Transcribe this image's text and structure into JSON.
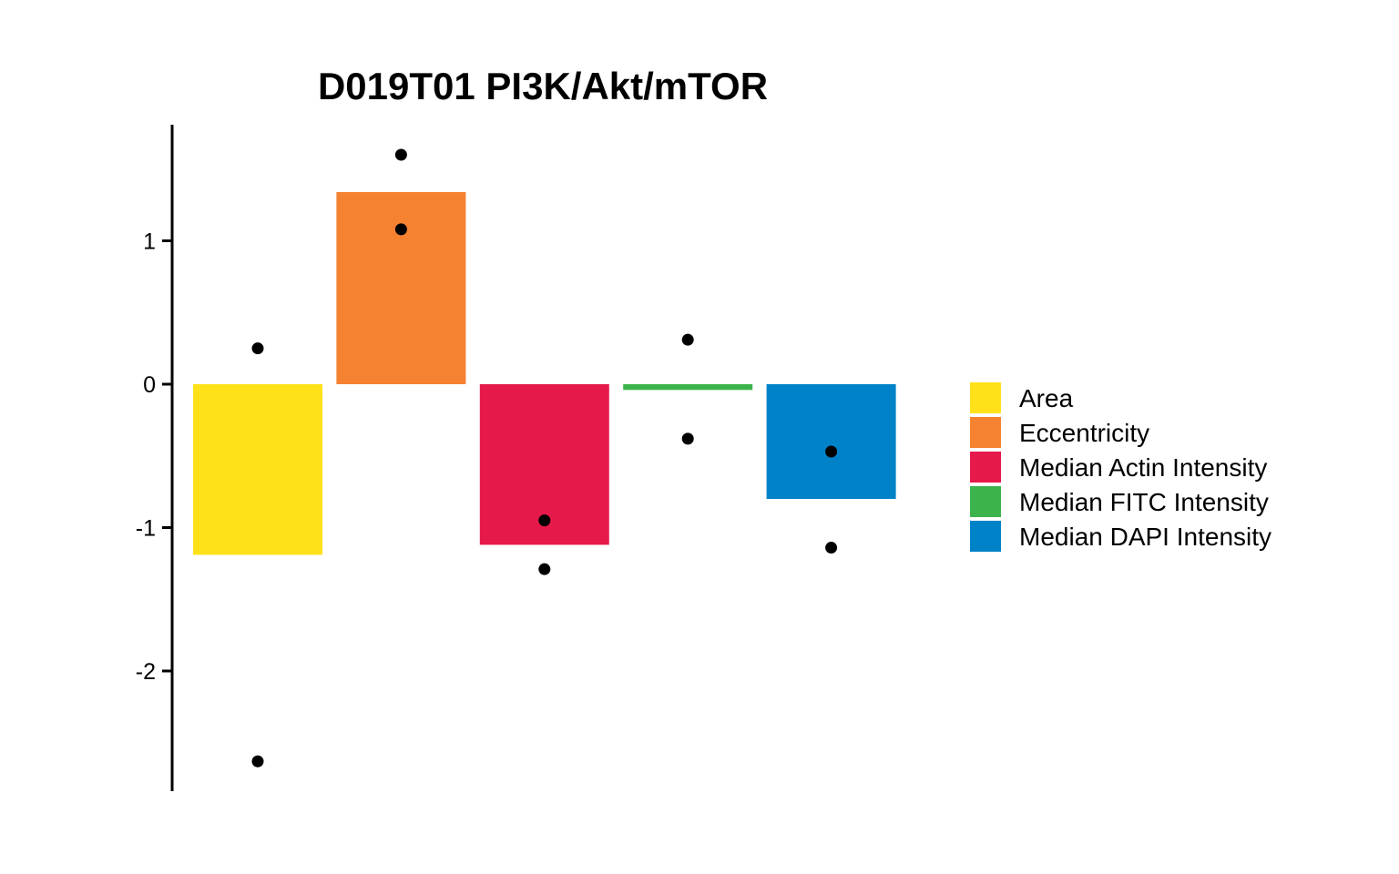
{
  "chart_data": {
    "type": "bar",
    "title": "D019T01 PI3K/Akt/mTOR",
    "xlabel": "",
    "ylabel": "",
    "categories": [
      "Area",
      "Eccentricity",
      "Median Actin Intensity",
      "Median FITC Intensity",
      "Median DAPI Intensity"
    ],
    "values": [
      -1.19,
      1.34,
      -1.12,
      -0.04,
      -0.8
    ],
    "colors": [
      "#FFE119",
      "#F58231",
      "#E6194B",
      "#3CB44B",
      "#0082C8"
    ],
    "points": [
      [
        0.25,
        -2.63
      ],
      [
        1.6,
        1.08
      ],
      [
        -0.95,
        -1.29
      ],
      [
        0.31,
        -0.38
      ],
      [
        -0.47,
        -1.14
      ]
    ],
    "yticks": [
      1,
      0,
      -1,
      -2
    ],
    "ytick_labels": [
      "1",
      "0",
      "-1",
      "-2"
    ],
    "ylim": [
      -2.85,
      1.81
    ],
    "grid": false,
    "legend": {
      "position": "right",
      "entries": [
        "Area",
        "Eccentricity",
        "Median Actin Intensity",
        "Median FITC Intensity",
        "Median DAPI Intensity"
      ]
    }
  }
}
